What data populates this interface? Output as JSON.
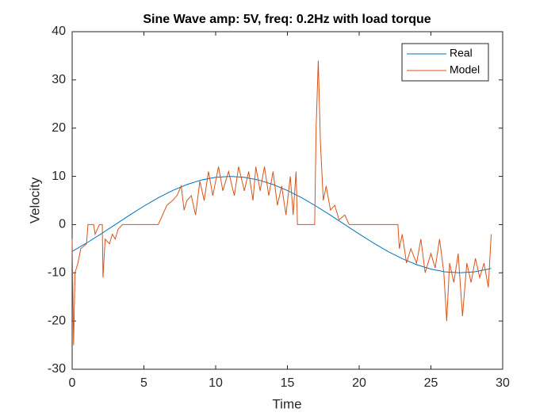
{
  "chart_data": {
    "type": "line",
    "title": "Sine Wave amp: 5V, freq: 0.2Hz with load torque",
    "xlabel": "Time",
    "ylabel": "Velocity",
    "xlim": [
      0,
      30
    ],
    "ylim": [
      -30,
      40
    ],
    "xticks": [
      0,
      5,
      10,
      15,
      20,
      25,
      30
    ],
    "yticks": [
      -30,
      -20,
      -10,
      0,
      10,
      20,
      30,
      40
    ],
    "grid": false,
    "legend_position": "northeast",
    "series": [
      {
        "name": "Real",
        "color": "#0072bd",
        "x": [
          0,
          1,
          2,
          3,
          4,
          5,
          6,
          7,
          8,
          9,
          10,
          11,
          12,
          13,
          14,
          15,
          16,
          17,
          18,
          19,
          20,
          21,
          22,
          23,
          24,
          25,
          26,
          27,
          28,
          29,
          29.2
        ],
        "values": [
          -5.56,
          -3.83,
          -1.95,
          0,
          1.95,
          3.83,
          5.56,
          7.07,
          8.31,
          9.24,
          9.81,
          10,
          9.81,
          9.24,
          8.31,
          7.07,
          5.56,
          3.83,
          1.95,
          0,
          -1.95,
          -3.83,
          -5.56,
          -7.07,
          -8.31,
          -9.24,
          -9.81,
          -10,
          -9.81,
          -9.24,
          -9.08
        ]
      },
      {
        "name": "Model",
        "color": "#d95319",
        "x": [
          0,
          0.1,
          0.2,
          0.4,
          0.6,
          1.0,
          1.1,
          1.5,
          1.6,
          1.9,
          2.1,
          2.15,
          2.3,
          2.6,
          2.8,
          3.0,
          3.2,
          3.5,
          6.0,
          6.3,
          6.6,
          7.0,
          7.3,
          7.6,
          7.8,
          8.0,
          8.3,
          8.6,
          8.9,
          9.2,
          9.5,
          9.8,
          10.2,
          10.5,
          10.9,
          11.3,
          11.6,
          12.0,
          12.3,
          12.6,
          12.8,
          13.1,
          13.4,
          13.7,
          14.0,
          14.3,
          14.6,
          14.9,
          15.2,
          15.4,
          15.6,
          15.7,
          16.0,
          16.5,
          16.9,
          17.0,
          17.15,
          17.3,
          17.5,
          17.7,
          18.0,
          18.3,
          18.6,
          19.0,
          19.3,
          20.0,
          22.7,
          22.8,
          23.0,
          23.3,
          23.6,
          24.0,
          24.3,
          24.6,
          25.0,
          25.3,
          25.6,
          25.9,
          26.1,
          26.3,
          26.6,
          26.9,
          27.2,
          27.5,
          27.8,
          28.1,
          28.4,
          28.7,
          29.0,
          29.2
        ],
        "values": [
          -3,
          -25,
          -10,
          -8,
          -5,
          -4,
          0,
          0,
          -2,
          0,
          0,
          -11,
          -3,
          -4,
          -2,
          -3,
          -1,
          0,
          0,
          2,
          4,
          5,
          6,
          8,
          3,
          5,
          6,
          2,
          9,
          5,
          11,
          6,
          12,
          7,
          11,
          6,
          12,
          7,
          11,
          5,
          12,
          7,
          12,
          6,
          11,
          4,
          8,
          2,
          10,
          2,
          11,
          0,
          0,
          0,
          0,
          20,
          34,
          17,
          5,
          8,
          3,
          4,
          1,
          2,
          0,
          0,
          0,
          -5,
          -2,
          -8,
          -5,
          -8,
          -3,
          -10,
          -6,
          -9,
          -3,
          -10,
          -20,
          -8,
          -12,
          -6,
          -19,
          -8,
          -12,
          -7,
          -11,
          -8,
          -13,
          -2
        ]
      }
    ]
  }
}
